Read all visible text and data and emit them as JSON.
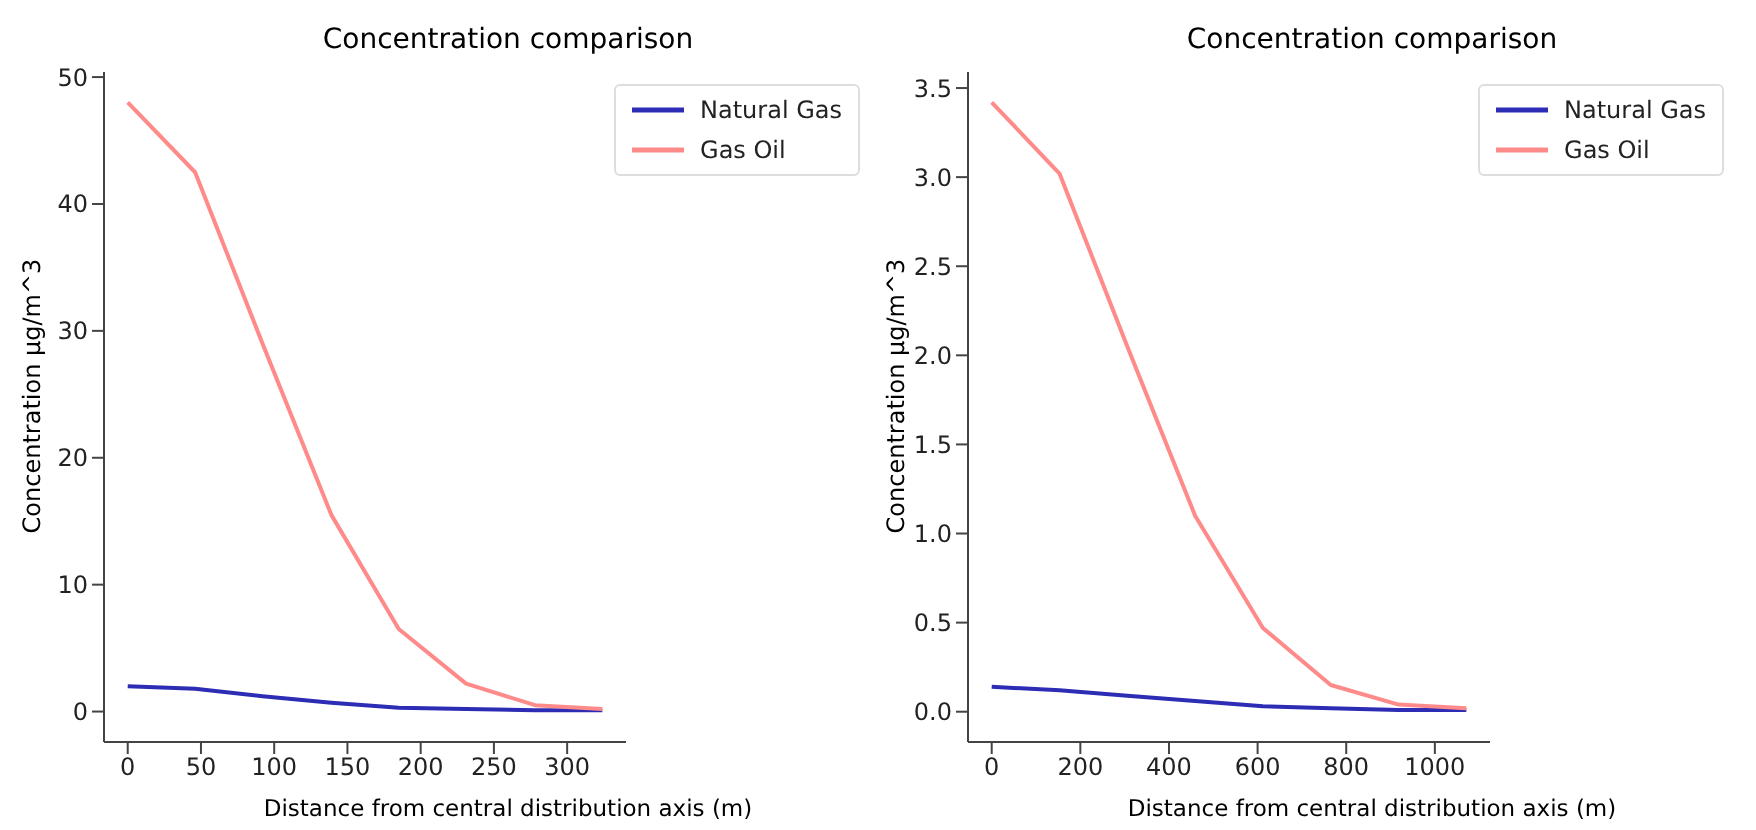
{
  "chart_data": [
    {
      "type": "line",
      "title": "Concentration comparison",
      "xlabel": "Distance from central distribution axis (m)",
      "ylabel": "Concentration μg/m^3",
      "x": [
        0,
        46,
        92,
        139,
        185,
        231,
        278,
        324
      ],
      "series": [
        {
          "name": "Natural Gas",
          "color": "#2c2cb4",
          "values": [
            2.0,
            1.8,
            1.2,
            0.7,
            0.3,
            0.2,
            0.1,
            0.1
          ]
        },
        {
          "name": "Gas Oil",
          "color": "#ff8a8a",
          "values": [
            48,
            42.5,
            29,
            15.5,
            6.5,
            2.2,
            0.5,
            0.2
          ]
        }
      ],
      "xlim": [
        -16.2,
        340.2
      ],
      "ylim": [
        -2.4,
        50.4
      ],
      "xticks": [
        0,
        50,
        100,
        150,
        200,
        250,
        300
      ],
      "yticks": [
        0,
        10,
        20,
        30,
        40,
        50
      ],
      "grid": false,
      "legend": "top right",
      "marker": "none",
      "line_style": "solid"
    },
    {
      "type": "line",
      "title": "Concentration comparison",
      "xlabel": "Distance from central distribution axis (m)",
      "ylabel": "Concentration μg/m^3",
      "x": [
        0,
        153,
        306,
        459,
        612,
        765,
        918,
        1071
      ],
      "series": [
        {
          "name": "Natural Gas",
          "color": "#2c2cb4",
          "values": [
            0.14,
            0.12,
            0.09,
            0.06,
            0.03,
            0.02,
            0.01,
            0.01
          ]
        },
        {
          "name": "Gas Oil",
          "color": "#ff8a8a",
          "values": [
            3.42,
            3.02,
            2.05,
            1.1,
            0.47,
            0.15,
            0.04,
            0.02
          ]
        }
      ],
      "xlim": [
        -53.5,
        1124.5
      ],
      "ylim": [
        -0.17,
        3.59
      ],
      "xticks": [
        0,
        200,
        400,
        600,
        800,
        1000
      ],
      "yticks": [
        {
          "value": 0,
          "label": "0.0"
        },
        {
          "value": 0.5,
          "label": "0.5"
        },
        {
          "value": 1,
          "label": "1.0"
        },
        {
          "value": 1.5,
          "label": "1.5"
        },
        {
          "value": 2,
          "label": "2.0"
        },
        {
          "value": 2.5,
          "label": "2.5"
        },
        {
          "value": 3,
          "label": "3.0"
        },
        {
          "value": 3.5,
          "label": "3.5"
        }
      ],
      "grid": false,
      "legend": "top right",
      "marker": "none",
      "line_style": "solid"
    }
  ]
}
